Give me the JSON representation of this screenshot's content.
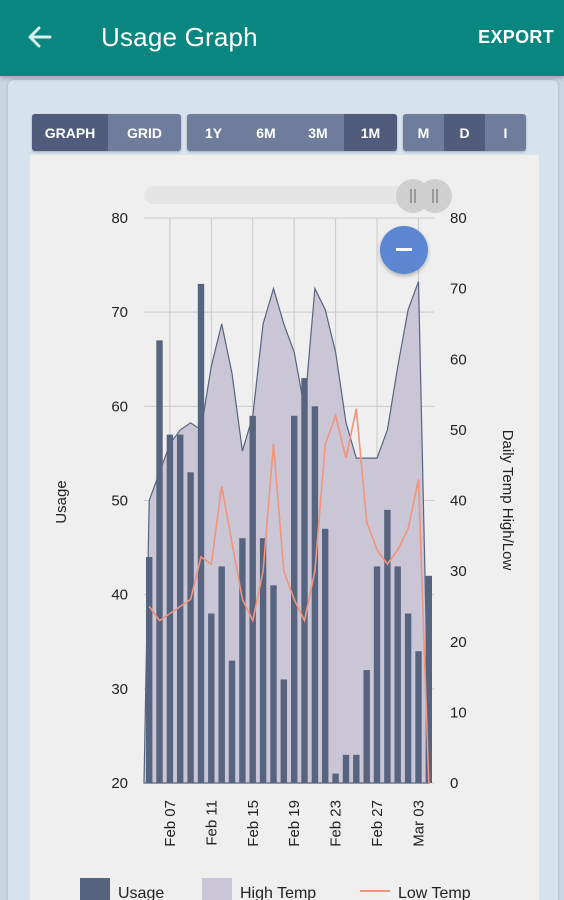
{
  "app_bar": {
    "title": "Usage Graph",
    "export_label": "EXPORT",
    "back_icon": "arrow-left-icon"
  },
  "view_toggle": [
    {
      "label": "GRAPH",
      "selected": true
    },
    {
      "label": "GRID",
      "selected": false
    }
  ],
  "range_toggle": [
    {
      "label": "1Y",
      "selected": false
    },
    {
      "label": "6M",
      "selected": false
    },
    {
      "label": "3M",
      "selected": false
    },
    {
      "label": "1M",
      "selected": true
    }
  ],
  "interval_toggle": [
    {
      "label": "M",
      "selected": false
    },
    {
      "label": "D",
      "selected": true
    },
    {
      "label": "I",
      "selected": false
    }
  ],
  "zoom_out_icon": "minus-icon",
  "colors": {
    "app_bar": "#08867f",
    "usage": "#56647f",
    "high_temp_fill": "#cbc6d6",
    "low_temp": "#f0947a",
    "selected_segment": "#4f5c7b"
  },
  "chart_data": {
    "type": "bar",
    "ylabel": "Usage",
    "y2label": "Daily Temp High/Low",
    "ylim": [
      20,
      80
    ],
    "y2lim": [
      0,
      80
    ],
    "yticks": [
      20,
      30,
      40,
      50,
      60,
      70,
      80
    ],
    "y2ticks": [
      0,
      10,
      20,
      30,
      40,
      50,
      60,
      70,
      80
    ],
    "xticks": [
      "Feb 07",
      "Feb 11",
      "Feb 15",
      "Feb 19",
      "Feb 23",
      "Feb 27",
      "Mar 03"
    ],
    "x": [
      "Feb 05",
      "Feb 06",
      "Feb 07",
      "Feb 08",
      "Feb 09",
      "Feb 10",
      "Feb 11",
      "Feb 12",
      "Feb 13",
      "Feb 14",
      "Feb 15",
      "Feb 16",
      "Feb 17",
      "Feb 18",
      "Feb 19",
      "Feb 20",
      "Feb 21",
      "Feb 22",
      "Feb 23",
      "Feb 24",
      "Feb 25",
      "Feb 26",
      "Feb 27",
      "Feb 28",
      "Mar 01",
      "Mar 02",
      "Mar 03",
      "Mar 04"
    ],
    "grid": true,
    "legend_position": "bottom",
    "series": [
      {
        "name": "Usage",
        "kind": "bar",
        "axis": "left",
        "values": [
          44,
          67,
          57,
          57,
          53,
          73,
          38,
          43,
          33,
          46,
          59,
          46,
          41,
          31,
          59,
          63,
          60,
          47,
          21,
          23,
          23,
          32,
          43,
          49,
          43,
          38,
          34,
          42
        ]
      },
      {
        "name": "High Temp",
        "kind": "area",
        "axis": "right",
        "values": [
          40,
          44,
          48,
          50,
          51,
          50,
          59,
          65,
          58,
          47,
          52,
          65,
          70,
          65,
          61,
          53,
          70,
          67,
          61,
          51,
          46,
          46,
          46,
          50,
          59,
          67,
          71,
          5
        ]
      },
      {
        "name": "Low Temp",
        "kind": "line",
        "axis": "right",
        "values": [
          25,
          23,
          24,
          25,
          26,
          32,
          31,
          42,
          34,
          26,
          23,
          30,
          48,
          30,
          26,
          23,
          30,
          48,
          52,
          46,
          53,
          37,
          33,
          31,
          33,
          36,
          43,
          0
        ]
      }
    ]
  }
}
